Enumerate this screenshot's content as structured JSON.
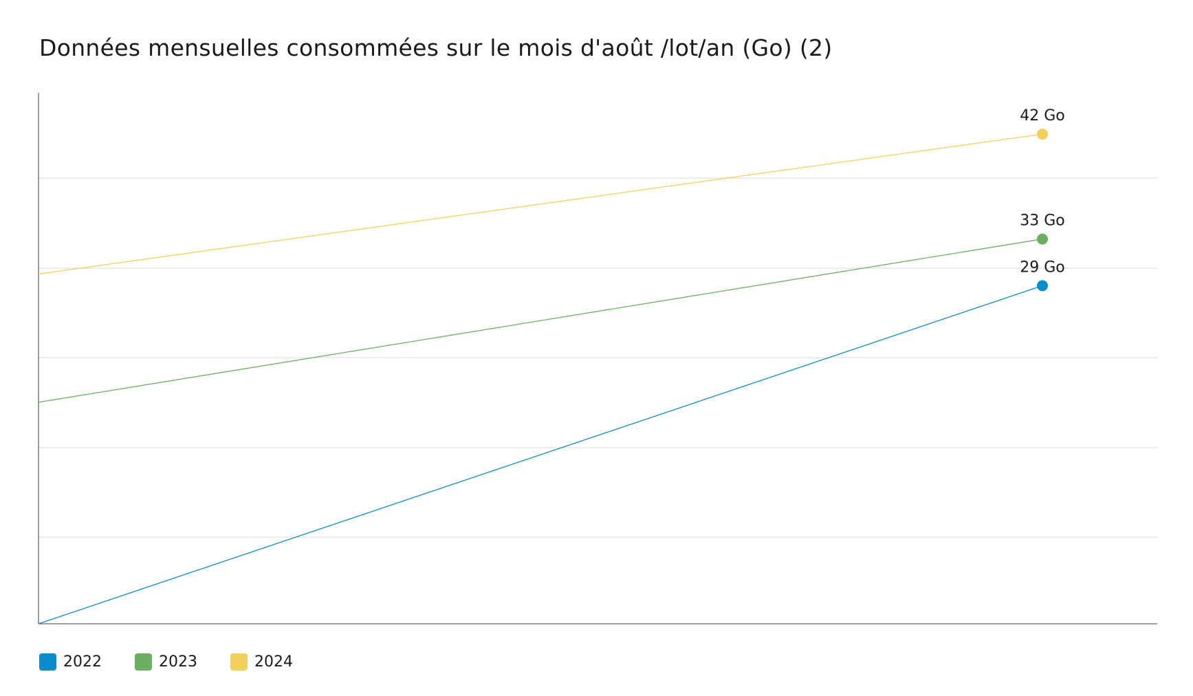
{
  "chart_data": {
    "type": "line",
    "title": "Données mensuelles consommées sur le mois d'août /lot/an (Go) (2)",
    "xlabel": "",
    "ylabel": "",
    "ylim": [
      0,
      42
    ],
    "grid": true,
    "legend_position": "bottom-left",
    "series": [
      {
        "name": "2022",
        "color": "#0a8ccb",
        "values": [
          0,
          29
        ],
        "end_label": "29 Go"
      },
      {
        "name": "2023",
        "color": "#6aaf62",
        "values": [
          19,
          33
        ],
        "end_label": "33 Go"
      },
      {
        "name": "2024",
        "color": "#f2d15a",
        "values": [
          30,
          42
        ],
        "end_label": "42 Go"
      }
    ]
  }
}
